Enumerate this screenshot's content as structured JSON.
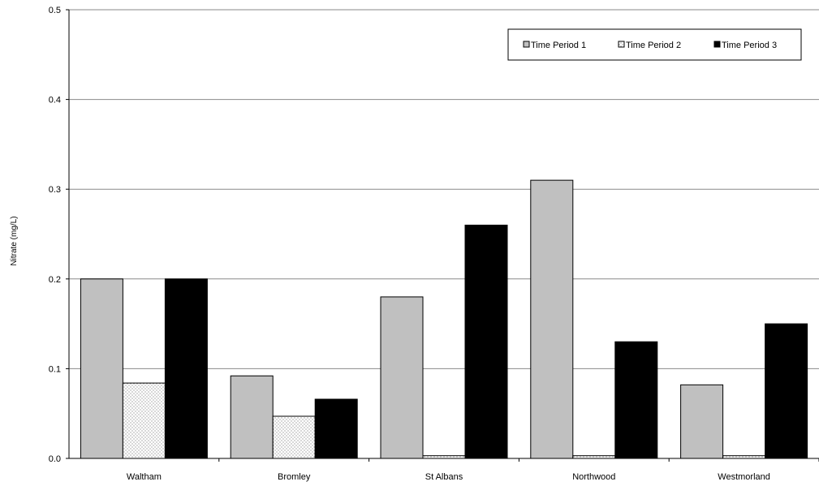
{
  "chart_data": {
    "type": "bar",
    "title": "",
    "xlabel": "",
    "ylabel": "Nitrate (mg/L)",
    "ylim": [
      0,
      0.5
    ],
    "yticks": [
      "0.0",
      "0.1",
      "0.2",
      "0.3",
      "0.4",
      "0.5"
    ],
    "grid": true,
    "legend_position": "top-right",
    "categories": [
      "Waltham",
      "Bromley",
      "St Albans",
      "Northwood",
      "Westmorland"
    ],
    "series": [
      {
        "name": "Time Period 1",
        "values": [
          0.2,
          0.092,
          0.18,
          0.31,
          0.082
        ],
        "color": "#c0c0c0",
        "pattern": "solid"
      },
      {
        "name": "Time Period 2",
        "values": [
          0.084,
          0.047,
          0.003,
          0.003,
          0.003
        ],
        "color": "#ffffff",
        "pattern": "dots"
      },
      {
        "name": "Time Period 3",
        "values": [
          0.2,
          0.066,
          0.26,
          0.13,
          0.15
        ],
        "color": "#000000",
        "pattern": "solid"
      }
    ]
  }
}
